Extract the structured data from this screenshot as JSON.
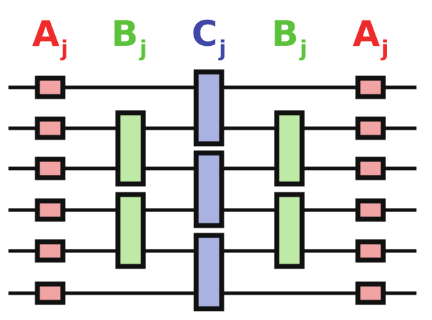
{
  "colors": {
    "wire": "#111111",
    "gate_stroke": "#111111",
    "A": {
      "text": "#ee2a2a",
      "fill": "#f2a3a3"
    },
    "B": {
      "text": "#5cc23b",
      "fill": "#bfeaa6"
    },
    "C": {
      "text": "#3f48a6",
      "fill": "#a9b2e0"
    }
  },
  "columns": [
    {
      "letter": "A",
      "subscript": "j",
      "type": "A"
    },
    {
      "letter": "B",
      "subscript": "j",
      "type": "B"
    },
    {
      "letter": "C",
      "subscript": "j",
      "type": "C"
    },
    {
      "letter": "B",
      "subscript": "j",
      "type": "B"
    },
    {
      "letter": "A",
      "subscript": "j",
      "type": "A"
    }
  ],
  "wire_count": 6,
  "gates": [
    {
      "column": 0,
      "type": "A",
      "wires": [
        0
      ]
    },
    {
      "column": 0,
      "type": "A",
      "wires": [
        1
      ]
    },
    {
      "column": 0,
      "type": "A",
      "wires": [
        2
      ]
    },
    {
      "column": 0,
      "type": "A",
      "wires": [
        3
      ]
    },
    {
      "column": 0,
      "type": "A",
      "wires": [
        4
      ]
    },
    {
      "column": 0,
      "type": "A",
      "wires": [
        5
      ]
    },
    {
      "column": 1,
      "type": "B",
      "wires": [
        1,
        2
      ]
    },
    {
      "column": 1,
      "type": "B",
      "wires": [
        3,
        4
      ]
    },
    {
      "column": 2,
      "type": "C",
      "wires": [
        0,
        1
      ]
    },
    {
      "column": 2,
      "type": "C",
      "wires": [
        2,
        3
      ]
    },
    {
      "column": 2,
      "type": "C",
      "wires": [
        4,
        5
      ]
    },
    {
      "column": 3,
      "type": "B",
      "wires": [
        1,
        2
      ]
    },
    {
      "column": 3,
      "type": "B",
      "wires": [
        3,
        4
      ]
    },
    {
      "column": 4,
      "type": "A",
      "wires": [
        0
      ]
    },
    {
      "column": 4,
      "type": "A",
      "wires": [
        1
      ]
    },
    {
      "column": 4,
      "type": "A",
      "wires": [
        2
      ]
    },
    {
      "column": 4,
      "type": "A",
      "wires": [
        3
      ]
    },
    {
      "column": 4,
      "type": "A",
      "wires": [
        4
      ]
    },
    {
      "column": 4,
      "type": "A",
      "wires": [
        5
      ]
    }
  ]
}
